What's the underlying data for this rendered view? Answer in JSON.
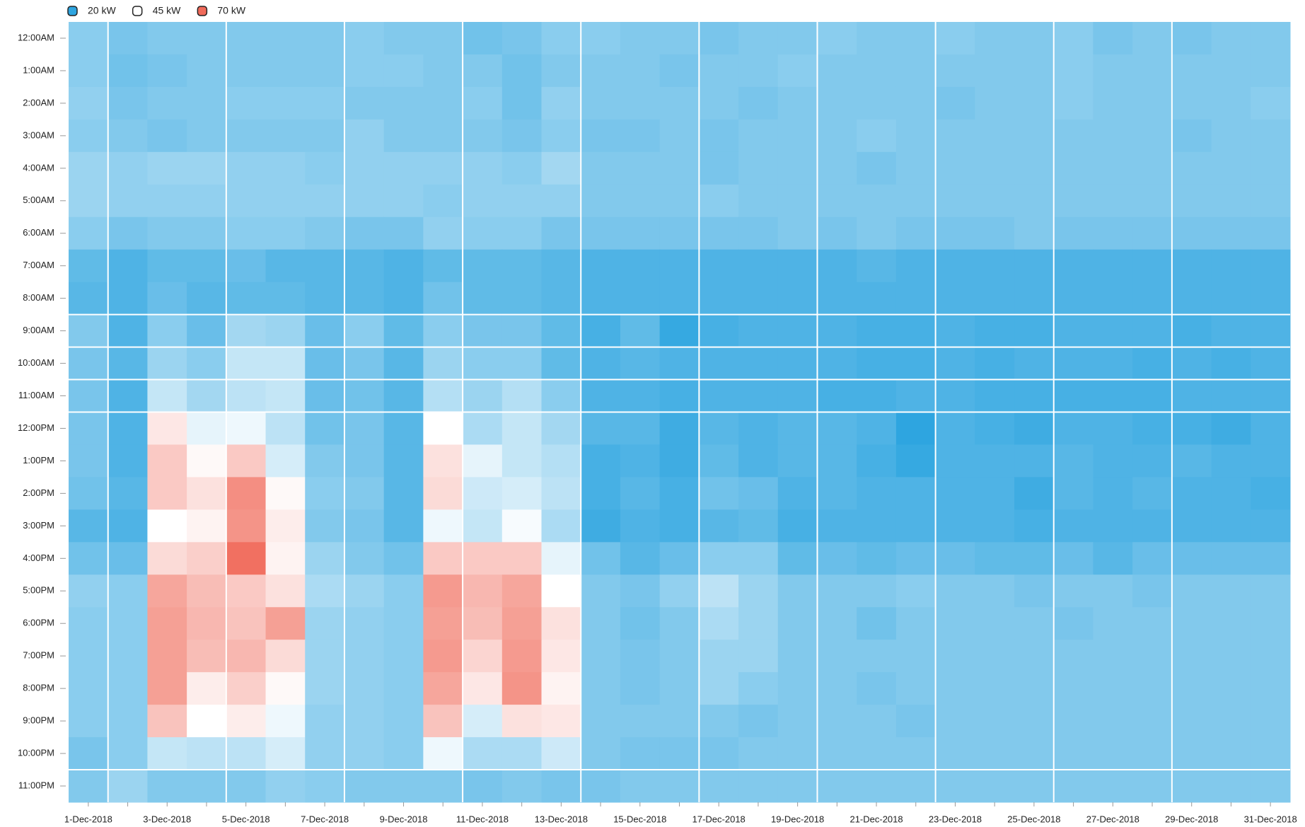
{
  "chart_data": {
    "type": "heatmap",
    "legend": [
      {
        "name": "20 kW",
        "value": 20,
        "color": "#2ea5e0"
      },
      {
        "name": "45 kW",
        "value": 45,
        "color": "#ffffff"
      },
      {
        "name": "70 kW",
        "value": 70,
        "color": "#f06a5a"
      }
    ],
    "x": [
      "1-Dec-2018",
      null,
      "3-Dec-2018",
      null,
      "5-Dec-2018",
      null,
      "7-Dec-2018",
      null,
      "9-Dec-2018",
      null,
      "11-Dec-2018",
      null,
      "13-Dec-2018",
      null,
      "15-Dec-2018",
      null,
      "17-Dec-2018",
      null,
      "19-Dec-2018",
      null,
      "21-Dec-2018",
      null,
      "23-Dec-2018",
      null,
      "25-Dec-2018",
      null,
      "27-Dec-2018",
      null,
      "29-Dec-2018",
      null,
      "31-Dec-2018"
    ],
    "categories": [
      "12:00AM",
      "1:00AM",
      "2:00AM",
      "3:00AM",
      "4:00AM",
      "5:00AM",
      "6:00AM",
      "7:00AM",
      "8:00AM",
      "9:00AM",
      "10:00AM",
      "11:00AM",
      "12:00PM",
      "1:00PM",
      "2:00PM",
      "3:00PM",
      "4:00PM",
      "5:00PM",
      "6:00PM",
      "7:00PM",
      "8:00PM",
      "9:00PM",
      "10:00PM",
      "11:00PM"
    ],
    "values": [
      [
        31,
        29,
        30,
        30,
        30,
        30,
        30,
        31,
        30,
        30,
        28,
        29,
        31,
        31,
        30,
        30,
        29,
        30,
        30,
        31,
        30,
        30,
        31,
        30,
        30,
        31,
        29,
        30,
        29,
        30,
        30
      ],
      [
        31,
        28,
        29,
        30,
        30,
        30,
        30,
        31,
        31,
        30,
        30,
        28,
        30,
        30,
        30,
        29,
        30,
        30,
        31,
        30,
        30,
        30,
        30,
        30,
        30,
        31,
        30,
        30,
        30,
        30,
        30
      ],
      [
        32,
        29,
        30,
        30,
        31,
        31,
        31,
        30,
        30,
        30,
        31,
        28,
        32,
        30,
        30,
        30,
        30,
        29,
        30,
        30,
        30,
        30,
        29,
        30,
        30,
        31,
        30,
        30,
        30,
        30,
        31
      ],
      [
        31,
        30,
        29,
        30,
        30,
        30,
        30,
        32,
        30,
        30,
        30,
        29,
        31,
        29,
        29,
        30,
        29,
        30,
        30,
        30,
        31,
        30,
        30,
        30,
        30,
        30,
        30,
        30,
        29,
        30,
        30
      ],
      [
        33,
        32,
        33,
        33,
        32,
        32,
        31,
        32,
        32,
        32,
        32,
        31,
        34,
        30,
        30,
        30,
        29,
        30,
        30,
        30,
        29,
        30,
        30,
        30,
        30,
        30,
        30,
        30,
        30,
        30,
        30
      ],
      [
        33,
        32,
        32,
        32,
        32,
        32,
        32,
        32,
        32,
        31,
        32,
        32,
        32,
        30,
        30,
        30,
        31,
        30,
        30,
        30,
        30,
        30,
        30,
        30,
        30,
        30,
        30,
        30,
        30,
        30,
        30
      ],
      [
        31,
        29,
        30,
        30,
        31,
        31,
        30,
        29,
        29,
        32,
        31,
        31,
        29,
        29,
        29,
        29,
        29,
        29,
        30,
        29,
        30,
        29,
        29,
        29,
        30,
        29,
        29,
        29,
        29,
        29,
        29
      ],
      [
        26,
        24,
        26,
        26,
        27,
        25,
        25,
        25,
        24,
        26,
        26,
        26,
        25,
        24,
        24,
        24,
        24,
        24,
        24,
        24,
        25,
        24,
        24,
        24,
        24,
        24,
        24,
        24,
        24,
        24,
        24
      ],
      [
        25,
        24,
        27,
        25,
        26,
        26,
        25,
        25,
        24,
        28,
        26,
        26,
        25,
        24,
        24,
        24,
        24,
        24,
        24,
        24,
        24,
        24,
        24,
        24,
        24,
        24,
        24,
        24,
        24,
        24,
        24
      ],
      [
        30,
        24,
        31,
        27,
        34,
        33,
        27,
        31,
        26,
        31,
        29,
        29,
        26,
        23,
        26,
        21,
        23,
        24,
        24,
        24,
        23,
        23,
        24,
        23,
        23,
        24,
        24,
        24,
        23,
        24,
        24
      ],
      [
        29,
        25,
        33,
        31,
        38,
        38,
        27,
        29,
        25,
        33,
        31,
        31,
        26,
        24,
        25,
        24,
        24,
        24,
        24,
        24,
        23,
        23,
        24,
        23,
        24,
        24,
        24,
        23,
        24,
        23,
        24
      ],
      [
        29,
        24,
        38,
        34,
        37,
        38,
        27,
        28,
        25,
        36,
        33,
        36,
        31,
        24,
        24,
        23,
        24,
        24,
        24,
        23,
        23,
        24,
        24,
        23,
        23,
        23,
        23,
        23,
        24,
        24,
        24
      ],
      [
        29,
        24,
        49,
        42,
        43,
        37,
        28,
        29,
        25,
        45,
        35,
        38,
        34,
        25,
        25,
        22,
        25,
        24,
        25,
        25,
        24,
        20,
        24,
        23,
        22,
        24,
        24,
        23,
        23,
        22,
        24
      ],
      [
        29,
        24,
        54,
        46,
        54,
        40,
        30,
        29,
        25,
        50,
        42,
        38,
        36,
        23,
        24,
        22,
        26,
        24,
        25,
        25,
        23,
        21,
        24,
        24,
        24,
        25,
        24,
        24,
        25,
        24,
        24
      ],
      [
        28,
        25,
        54,
        50,
        64,
        46,
        31,
        30,
        25,
        51,
        39,
        40,
        37,
        23,
        25,
        23,
        28,
        27,
        24,
        25,
        24,
        24,
        24,
        24,
        22,
        25,
        24,
        25,
        24,
        24,
        23
      ],
      [
        25,
        24,
        45,
        47,
        63,
        48,
        30,
        29,
        25,
        43,
        38,
        44,
        35,
        22,
        24,
        23,
        25,
        26,
        23,
        24,
        24,
        24,
        24,
        24,
        23,
        24,
        24,
        24,
        24,
        24,
        24
      ],
      [
        28,
        27,
        51,
        53,
        69,
        47,
        33,
        30,
        28,
        54,
        54,
        54,
        42,
        28,
        25,
        27,
        31,
        31,
        26,
        27,
        26,
        27,
        27,
        26,
        26,
        27,
        25,
        27,
        27,
        27,
        27
      ],
      [
        32,
        31,
        60,
        56,
        54,
        50,
        35,
        33,
        31,
        62,
        57,
        60,
        45,
        30,
        29,
        32,
        37,
        33,
        30,
        30,
        30,
        31,
        30,
        30,
        29,
        30,
        30,
        29,
        30,
        30,
        30
      ],
      [
        31,
        31,
        61,
        57,
        55,
        61,
        33,
        32,
        31,
        61,
        56,
        61,
        50,
        30,
        28,
        30,
        35,
        33,
        30,
        30,
        28,
        30,
        30,
        30,
        30,
        29,
        30,
        30,
        30,
        30,
        30
      ],
      [
        31,
        31,
        61,
        56,
        57,
        51,
        33,
        32,
        31,
        62,
        52,
        62,
        49,
        30,
        29,
        30,
        33,
        33,
        30,
        30,
        30,
        30,
        30,
        30,
        30,
        30,
        30,
        30,
        30,
        30,
        30
      ],
      [
        31,
        31,
        61,
        48,
        53,
        46,
        33,
        32,
        31,
        60,
        49,
        63,
        47,
        30,
        29,
        30,
        33,
        31,
        30,
        30,
        29,
        30,
        30,
        30,
        30,
        30,
        30,
        30,
        30,
        30,
        30
      ],
      [
        31,
        31,
        55,
        45,
        48,
        43,
        32,
        32,
        31,
        55,
        40,
        50,
        49,
        30,
        30,
        30,
        30,
        29,
        30,
        30,
        30,
        29,
        30,
        30,
        30,
        30,
        30,
        30,
        30,
        30,
        30
      ],
      [
        29,
        31,
        38,
        37,
        37,
        40,
        32,
        32,
        31,
        43,
        35,
        35,
        39,
        30,
        29,
        29,
        29,
        30,
        30,
        30,
        30,
        30,
        30,
        30,
        30,
        30,
        30,
        30,
        30,
        30,
        30
      ],
      [
        30,
        33,
        30,
        30,
        30,
        32,
        31,
        30,
        30,
        30,
        29,
        30,
        29,
        29,
        30,
        30,
        30,
        30,
        30,
        30,
        30,
        30,
        30,
        30,
        30,
        30,
        30,
        30,
        30,
        30,
        30
      ]
    ]
  }
}
